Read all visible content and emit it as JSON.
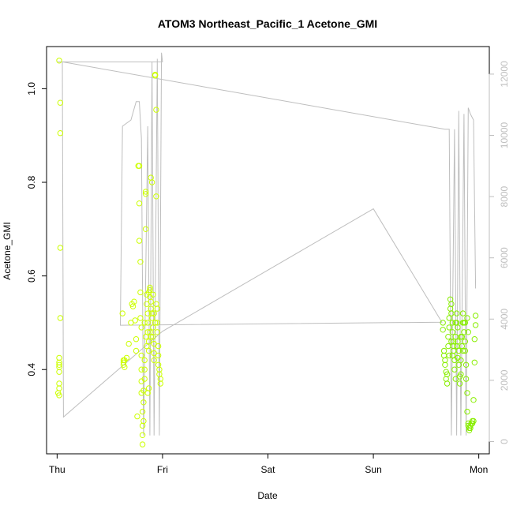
{
  "chart_data": {
    "type": "scatter",
    "title": "ATOM3 Northeast_Pacific_1 Acetone_GMI",
    "xlabel": "Date",
    "ylabel": "Acetone_GMI",
    "x_axis_type": "date",
    "x_ticks": [
      "Thu",
      "Fri",
      "Sat",
      "Sun",
      "Mon"
    ],
    "xlim_days": [
      -0.1,
      4.1
    ],
    "ylim": [
      0.22,
      1.09
    ],
    "y_ticks": [
      0.4,
      0.6,
      0.8,
      1.0
    ],
    "y_tick_labels": [
      "0.4",
      "0.6",
      "0.8",
      "1.0"
    ],
    "y2_ticks": [
      0,
      2000,
      4000,
      6000,
      8000,
      10000,
      12000
    ],
    "y2_tick_labels": [
      "0",
      "2000",
      "4000",
      "6000",
      "8000",
      "10000",
      "12000"
    ],
    "y2lim": [
      -400,
      12900
    ],
    "grid": false,
    "legend": "none",
    "colors": {
      "points_early": "#ccff00",
      "points_late": "#88ee00",
      "altitude_line": "#bebebe",
      "axis": "#000000"
    },
    "altitude_line": [
      [
        0.0,
        12400
      ],
      [
        0.05,
        12400
      ],
      [
        0.06,
        800
      ],
      [
        1.0,
        3600
      ],
      [
        2.0,
        5600
      ],
      [
        3.0,
        7600
      ],
      [
        3.65,
        3900
      ],
      [
        0.6,
        3800
      ],
      [
        0.62,
        10300
      ],
      [
        0.7,
        10500
      ],
      [
        0.75,
        11100
      ],
      [
        0.78,
        11100
      ],
      [
        0.8,
        9900
      ],
      [
        0.82,
        200
      ],
      [
        0.86,
        10300
      ],
      [
        0.88,
        200
      ],
      [
        0.9,
        12400
      ],
      [
        0.92,
        200
      ],
      [
        0.95,
        12500
      ],
      [
        0.97,
        200
      ],
      [
        0.99,
        12700
      ],
      [
        1.0,
        12400
      ],
      [
        0.05,
        12400
      ],
      [
        3.68,
        10200
      ],
      [
        3.72,
        10200
      ],
      [
        3.74,
        200
      ],
      [
        3.77,
        10200
      ],
      [
        3.79,
        200
      ],
      [
        3.81,
        10800
      ],
      [
        3.83,
        200
      ],
      [
        3.86,
        10700
      ],
      [
        3.88,
        200
      ],
      [
        3.9,
        10900
      ],
      [
        3.92,
        10700
      ],
      [
        3.95,
        10500
      ],
      [
        3.97,
        5000
      ]
    ],
    "series": [
      {
        "points": [
          [
            0.02,
            1.06
          ],
          [
            0.03,
            0.97
          ],
          [
            0.03,
            0.905
          ],
          [
            0.03,
            0.66
          ],
          [
            0.03,
            0.51
          ],
          [
            0.02,
            0.425
          ],
          [
            0.02,
            0.415
          ],
          [
            0.02,
            0.41
          ],
          [
            0.02,
            0.405
          ],
          [
            0.02,
            0.395
          ],
          [
            0.02,
            0.37
          ],
          [
            0.02,
            0.36
          ],
          [
            0.01,
            0.35
          ],
          [
            0.02,
            0.345
          ],
          [
            0.62,
            0.52
          ],
          [
            0.63,
            0.42
          ],
          [
            0.63,
            0.415
          ],
          [
            0.63,
            0.41
          ],
          [
            0.64,
            0.405
          ],
          [
            0.64,
            0.42
          ],
          [
            0.66,
            0.425
          ],
          [
            0.68,
            0.455
          ],
          [
            0.7,
            0.5
          ],
          [
            0.71,
            0.54
          ],
          [
            0.72,
            0.535
          ],
          [
            0.73,
            0.545
          ],
          [
            0.74,
            0.505
          ],
          [
            0.75,
            0.465
          ],
          [
            0.75,
            0.44
          ],
          [
            0.76,
            0.3
          ],
          [
            0.77,
            0.835
          ],
          [
            0.78,
            0.835
          ],
          [
            0.78,
            0.755
          ],
          [
            0.78,
            0.675
          ],
          [
            0.79,
            0.63
          ],
          [
            0.79,
            0.565
          ],
          [
            0.79,
            0.51
          ],
          [
            0.8,
            0.49
          ],
          [
            0.8,
            0.43
          ],
          [
            0.8,
            0.4
          ],
          [
            0.8,
            0.375
          ],
          [
            0.8,
            0.35
          ],
          [
            0.81,
            0.31
          ],
          [
            0.81,
            0.28
          ],
          [
            0.81,
            0.26
          ],
          [
            0.81,
            0.24
          ],
          [
            0.82,
            0.29
          ],
          [
            0.82,
            0.33
          ],
          [
            0.82,
            0.355
          ],
          [
            0.83,
            0.38
          ],
          [
            0.83,
            0.4
          ],
          [
            0.83,
            0.42
          ],
          [
            0.84,
            0.78
          ],
          [
            0.84,
            0.775
          ],
          [
            0.84,
            0.7
          ],
          [
            0.85,
            0.56
          ],
          [
            0.85,
            0.54
          ],
          [
            0.86,
            0.52
          ],
          [
            0.86,
            0.5
          ],
          [
            0.86,
            0.48
          ],
          [
            0.87,
            0.46
          ],
          [
            0.87,
            0.44
          ],
          [
            0.87,
            0.565
          ],
          [
            0.88,
            0.57
          ],
          [
            0.88,
            0.575
          ],
          [
            0.88,
            0.555
          ],
          [
            0.89,
            0.545
          ],
          [
            0.89,
            0.53
          ],
          [
            0.89,
            0.81
          ],
          [
            0.9,
            0.8
          ],
          [
            0.9,
            0.52
          ],
          [
            0.9,
            0.51
          ],
          [
            0.91,
            0.49
          ],
          [
            0.91,
            0.47
          ],
          [
            0.92,
            0.455
          ],
          [
            0.92,
            0.435
          ],
          [
            0.92,
            0.42
          ],
          [
            0.93,
            1.03
          ],
          [
            0.93,
            1.028
          ],
          [
            0.94,
            0.955
          ],
          [
            0.94,
            0.77
          ],
          [
            0.94,
            0.54
          ],
          [
            0.95,
            0.53
          ],
          [
            0.95,
            0.5
          ],
          [
            0.95,
            0.48
          ],
          [
            0.96,
            0.45
          ],
          [
            0.96,
            0.43
          ],
          [
            0.96,
            0.41
          ],
          [
            0.97,
            0.4
          ],
          [
            0.97,
            0.39
          ],
          [
            0.98,
            0.38
          ],
          [
            0.98,
            0.37
          ],
          [
            0.86,
            0.35
          ],
          [
            0.87,
            0.36
          ],
          [
            0.85,
            0.45
          ],
          [
            0.84,
            0.47
          ],
          [
            0.83,
            0.5
          ],
          [
            0.91,
            0.56
          ],
          [
            0.92,
            0.52
          ],
          [
            0.93,
            0.5
          ],
          [
            0.88,
            0.48
          ],
          [
            0.89,
            0.47
          ]
        ]
      },
      {
        "points": [
          [
            3.66,
            0.5
          ],
          [
            3.66,
            0.485
          ],
          [
            3.67,
            0.44
          ],
          [
            3.67,
            0.43
          ],
          [
            3.68,
            0.42
          ],
          [
            3.68,
            0.41
          ],
          [
            3.69,
            0.395
          ],
          [
            3.69,
            0.38
          ],
          [
            3.7,
            0.37
          ],
          [
            3.7,
            0.39
          ],
          [
            3.71,
            0.45
          ],
          [
            3.71,
            0.47
          ],
          [
            3.72,
            0.49
          ],
          [
            3.72,
            0.51
          ],
          [
            3.73,
            0.53
          ],
          [
            3.73,
            0.55
          ],
          [
            3.74,
            0.54
          ],
          [
            3.74,
            0.52
          ],
          [
            3.75,
            0.5
          ],
          [
            3.75,
            0.48
          ],
          [
            3.76,
            0.46
          ],
          [
            3.76,
            0.44
          ],
          [
            3.77,
            0.42
          ],
          [
            3.77,
            0.4
          ],
          [
            3.78,
            0.38
          ],
          [
            3.78,
            0.47
          ],
          [
            3.79,
            0.5
          ],
          [
            3.79,
            0.52
          ],
          [
            3.8,
            0.49
          ],
          [
            3.8,
            0.46
          ],
          [
            3.81,
            0.44
          ],
          [
            3.81,
            0.41
          ],
          [
            3.82,
            0.385
          ],
          [
            3.82,
            0.37
          ],
          [
            3.83,
            0.39
          ],
          [
            3.83,
            0.42
          ],
          [
            3.84,
            0.45
          ],
          [
            3.84,
            0.47
          ],
          [
            3.85,
            0.5
          ],
          [
            3.85,
            0.52
          ],
          [
            3.86,
            0.5
          ],
          [
            3.86,
            0.48
          ],
          [
            3.87,
            0.46
          ],
          [
            3.87,
            0.44
          ],
          [
            3.88,
            0.41
          ],
          [
            3.88,
            0.38
          ],
          [
            3.89,
            0.35
          ],
          [
            3.89,
            0.31
          ],
          [
            3.9,
            0.285
          ],
          [
            3.9,
            0.28
          ],
          [
            3.91,
            0.275
          ],
          [
            3.91,
            0.27
          ],
          [
            3.92,
            0.275
          ],
          [
            3.92,
            0.28
          ],
          [
            3.93,
            0.285
          ],
          [
            3.94,
            0.29
          ],
          [
            3.94,
            0.285
          ],
          [
            3.95,
            0.29
          ],
          [
            3.95,
            0.335
          ],
          [
            3.96,
            0.415
          ],
          [
            3.96,
            0.465
          ],
          [
            3.97,
            0.495
          ],
          [
            3.97,
            0.515
          ],
          [
            3.75,
            0.43
          ],
          [
            3.76,
            0.45
          ],
          [
            3.78,
            0.5
          ],
          [
            3.8,
            0.425
          ],
          [
            3.83,
            0.47
          ],
          [
            3.85,
            0.44
          ],
          [
            3.87,
            0.5
          ],
          [
            3.89,
            0.51
          ],
          [
            3.9,
            0.48
          ],
          [
            3.72,
            0.43
          ],
          [
            3.74,
            0.46
          ],
          [
            3.79,
            0.45
          ]
        ]
      }
    ]
  }
}
